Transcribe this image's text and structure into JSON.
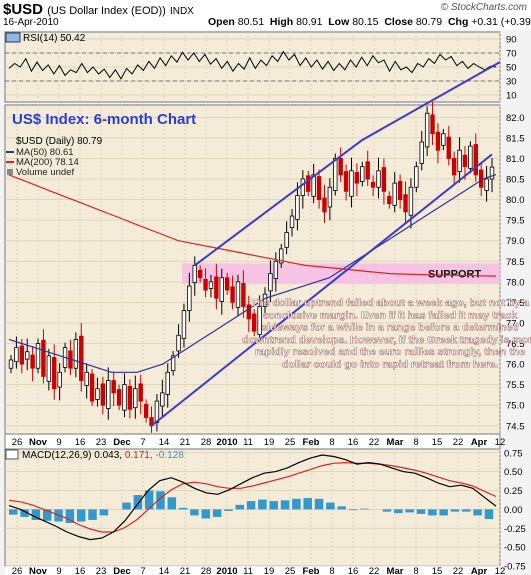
{
  "header": {
    "symbol": "$USD",
    "name": "(US Dollar Index (EOD))",
    "exchange": "INDX",
    "date": "16-Apr-2010",
    "credit": "© StockCharts.com",
    "open_label": "Open",
    "open": "80.51",
    "high_label": "High",
    "high": "80.91",
    "low_label": "Low",
    "low": "80.15",
    "close_label": "Close",
    "close": "80.79",
    "chg_label": "Chg",
    "chg": "+0.31 (+0.39%)",
    "chg_arrow": "▲"
  },
  "colors": {
    "price_up": "#000000",
    "price_down": "#cc0000",
    "ma50": "#3030a0",
    "ma200": "#dd2222",
    "trendline": "#3a3ad0",
    "support_band": "#f6bce6",
    "macd_hist": "#3399cc",
    "panel_bg": "#f4ecd8"
  },
  "chart_data": [
    {
      "type": "line",
      "panel": "rsi",
      "legend": "RSI(14) 50.42",
      "ylim": [
        0,
        100
      ],
      "y_ticks": [
        "90",
        "70",
        "50",
        "30",
        "10"
      ],
      "reference_lines": [
        70,
        30
      ],
      "series": [
        {
          "name": "RSI(14)",
          "values": [
            48,
            55,
            50,
            62,
            44,
            57,
            45,
            53,
            40,
            52,
            38,
            46,
            42,
            55,
            42,
            50,
            40,
            47,
            35,
            46,
            33,
            48,
            40,
            53,
            45,
            58,
            48,
            63,
            52,
            66,
            57,
            71,
            60,
            70,
            58,
            68,
            54,
            62,
            48,
            58,
            44,
            55,
            47,
            63,
            48,
            60,
            52,
            66,
            58,
            72,
            60,
            68,
            52,
            63,
            50,
            60,
            47,
            58,
            45,
            55,
            46,
            60,
            50,
            64,
            52,
            66,
            56,
            60,
            44,
            58,
            46,
            50,
            42,
            55,
            50,
            62,
            55,
            68,
            60,
            65,
            52,
            58,
            48,
            55,
            50,
            46,
            51,
            50
          ]
        }
      ]
    },
    {
      "type": "candlestick",
      "panel": "price",
      "title": "US$ Index: 6-month Chart",
      "legend": [
        "$USD (Daily) 80.79",
        "MA(50) 80.61",
        "MA(200) 78.14",
        "Volume undef"
      ],
      "ylim": [
        74.3,
        82.3
      ],
      "y_ticks": [
        "82.0",
        "81.5",
        "81.0",
        "80.5",
        "80.0",
        "79.5",
        "79.0",
        "78.5",
        "78.0",
        "77.5",
        "77.0",
        "76.5",
        "76.0",
        "75.5",
        "75.0",
        "74.5"
      ],
      "x_ticks": [
        "26",
        "Nov",
        "9",
        "16",
        "23",
        "Dec",
        "7",
        "14",
        "21",
        "28",
        "2010",
        "11",
        "19",
        "25",
        "Feb",
        "8",
        "16",
        "22",
        "Mar",
        "8",
        "15",
        "22",
        "Apr",
        "12"
      ],
      "support": {
        "label": "SUPPORT",
        "low": 77.95,
        "high": 78.45
      },
      "annotation": "The dollar uptrend failed about a week ago, but not by a conclusive margin. Even if it has failed it may track sideways for a while in a range before a determined downtrend develops. However, if the Greek tragedy is more rapidly resolved and the euro rallies strongly, then the dollar could go into rapid retreat from here.",
      "closes": [
        76.1,
        76.4,
        76.0,
        76.3,
        75.9,
        76.5,
        75.7,
        76.2,
        75.4,
        75.8,
        76.4,
        75.9,
        76.6,
        75.6,
        75.8,
        75.1,
        75.4,
        75.0,
        75.6,
        75.3,
        75.0,
        75.5,
        74.9,
        75.4,
        75.1,
        74.7,
        74.5,
        75.1,
        75.3,
        75.8,
        76.2,
        76.7,
        77.3,
        77.9,
        78.4,
        78.1,
        77.8,
        78.0,
        77.6,
        78.1,
        77.8,
        77.5,
        78.0,
        77.4,
        77.1,
        76.8,
        77.4,
        77.7,
        78.2,
        78.5,
        78.8,
        79.2,
        79.6,
        80.1,
        80.5,
        80.2,
        80.6,
        80.0,
        79.7,
        80.3,
        81.0,
        80.6,
        80.2,
        80.7,
        80.4,
        80.8,
        80.5,
        80.3,
        80.7,
        80.2,
        79.9,
        80.4,
        80.0,
        79.7,
        80.3,
        80.8,
        81.4,
        82.1,
        81.6,
        81.2,
        81.6,
        81.0,
        80.6,
        81.2,
        80.8,
        81.3,
        80.6,
        80.3,
        80.5,
        80.79
      ],
      "series": [
        {
          "name": "MA(50)",
          "values": [
            76.6,
            76.5,
            76.4,
            76.3,
            76.2,
            76.1,
            76.0,
            75.9,
            75.8,
            75.8,
            75.8,
            75.9,
            76.0,
            76.2,
            76.4,
            76.6,
            76.8,
            77.0,
            77.2,
            77.4,
            77.6,
            77.7,
            77.8,
            77.9,
            78.0,
            78.1,
            78.3,
            78.5,
            78.7,
            78.9,
            79.1,
            79.3,
            79.5,
            79.7,
            79.9,
            80.1,
            80.3,
            80.5,
            80.61
          ]
        },
        {
          "name": "MA(200)",
          "values": [
            80.6,
            80.4,
            80.2,
            80.0,
            79.8,
            79.6,
            79.4,
            79.2,
            79.0,
            78.9,
            78.8,
            78.7,
            78.6,
            78.5,
            78.4,
            78.35,
            78.3,
            78.25,
            78.2,
            78.18,
            78.17,
            78.16,
            78.15,
            78.14
          ]
        }
      ],
      "trend_channel": {
        "lower": [
          [
            26,
            74.5
          ],
          [
            89,
            81.1
          ]
        ],
        "upper": [
          [
            34,
            78.4
          ],
          [
            65,
            81.45
          ]
        ]
      }
    },
    {
      "type": "line",
      "panel": "macd",
      "legend_name": "MACD(12,26,9)",
      "legend_values": [
        "0.043",
        "0.171",
        "-0.128"
      ],
      "ylim": [
        -0.75,
        0.8
      ],
      "y_ticks": [
        "0.75",
        "0.50",
        "0.25",
        "0.00",
        "-0.25",
        "-0.50",
        "-0.75"
      ],
      "x_ticks": [
        "26",
        "Nov",
        "9",
        "16",
        "23",
        "Dec",
        "7",
        "14",
        "21",
        "28",
        "2010",
        "11",
        "19",
        "25",
        "Feb",
        "8",
        "16",
        "22",
        "Mar",
        "8",
        "15",
        "22",
        "Apr",
        "12"
      ],
      "series": [
        {
          "name": "MACD",
          "values": [
            0.05,
            0.0,
            -0.08,
            -0.15,
            -0.22,
            -0.3,
            -0.36,
            -0.4,
            -0.38,
            -0.3,
            -0.15,
            0.05,
            0.25,
            0.38,
            0.42,
            0.36,
            0.28,
            0.22,
            0.2,
            0.26,
            0.34,
            0.42,
            0.48,
            0.5,
            0.55,
            0.62,
            0.68,
            0.72,
            0.7,
            0.66,
            0.6,
            0.62,
            0.6,
            0.55,
            0.5,
            0.48,
            0.42,
            0.35,
            0.3,
            0.32,
            0.28,
            0.16,
            0.043
          ]
        },
        {
          "name": "Signal",
          "values": [
            0.12,
            0.1,
            0.06,
            0.0,
            -0.06,
            -0.12,
            -0.2,
            -0.26,
            -0.3,
            -0.3,
            -0.24,
            -0.14,
            0.0,
            0.14,
            0.26,
            0.34,
            0.36,
            0.34,
            0.3,
            0.28,
            0.28,
            0.31,
            0.35,
            0.39,
            0.43,
            0.48,
            0.53,
            0.58,
            0.61,
            0.62,
            0.61,
            0.61,
            0.6,
            0.58,
            0.55,
            0.52,
            0.48,
            0.43,
            0.38,
            0.35,
            0.31,
            0.24,
            0.171
          ]
        },
        {
          "name": "Histogram",
          "values": [
            -0.07,
            -0.1,
            -0.14,
            -0.15,
            -0.16,
            -0.18,
            -0.16,
            -0.14,
            -0.08,
            0.0,
            0.09,
            0.19,
            0.25,
            0.24,
            0.16,
            0.02,
            -0.08,
            -0.12,
            -0.1,
            -0.02,
            0.06,
            0.11,
            0.13,
            0.11,
            0.12,
            0.14,
            0.15,
            0.14,
            0.09,
            0.04,
            -0.01,
            0.01,
            0.0,
            -0.03,
            -0.05,
            -0.04,
            -0.06,
            -0.08,
            -0.08,
            -0.03,
            -0.03,
            -0.08,
            -0.128
          ]
        }
      ]
    }
  ]
}
